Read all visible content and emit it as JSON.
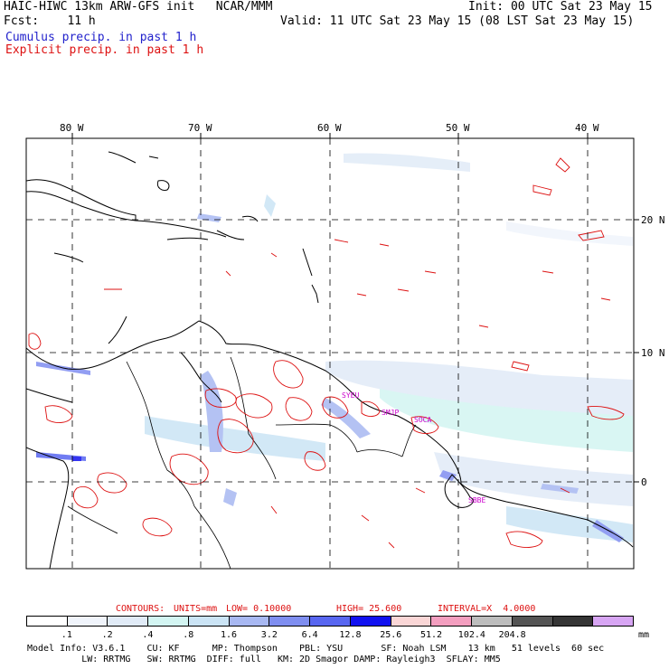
{
  "header": {
    "model_title": "HAIC-HIWC 13km ARW-GFS init   NCAR/MMM",
    "init_time": "Init: 00 UTC Sat 23 May 15",
    "forecast_label": "Fcst:    11 h",
    "valid_time": "Valid: 11 UTC Sat 23 May 15 (08 LST Sat 23 May 15)",
    "cumulus_legend": "Cumulus precip. in past 1 h",
    "explicit_legend": "Explicit precip. in past 1 h"
  },
  "colors": {
    "cumulus": "#2222cc",
    "explicit": "#dd1111",
    "contour": "#dd1111",
    "frame": "#000000",
    "station": "#cc00cc"
  },
  "map": {
    "lon_labels": [
      "80 W",
      "70 W",
      "60 W",
      "50 W",
      "40 W"
    ],
    "lat_labels": [
      "20 N",
      "10 N",
      "0"
    ],
    "stations": [
      "SYEU",
      "SMJP",
      "SOCA",
      "SBBE"
    ]
  },
  "contours": {
    "label": "CONTOURS:",
    "units": "UNITS=mm",
    "low": "LOW= 0.10000",
    "high": "HIGH= 25.600",
    "interval": "INTERVAL=X  4.0000"
  },
  "colorbar": {
    "colors": [
      "#ffffff",
      "#f0f4fb",
      "#e1ebf7",
      "#d3f5f2",
      "#cbe4f5",
      "#a8b8f2",
      "#7f8ef0",
      "#5866f0",
      "#1111f0",
      "#fad6d6",
      "#f39ebf",
      "#bdbdbd",
      "#545454",
      "#353535",
      "#d7a5f3"
    ],
    "labels": [
      ".1",
      ".2",
      ".4",
      ".8",
      "1.6",
      "3.2",
      "6.4",
      "12.8",
      "25.6",
      "51.2",
      "102.4",
      "204.8"
    ],
    "units": "mm"
  },
  "footer": {
    "line1": "Model Info: V3.6.1    CU: KF      MP: Thompson    PBL: YSU       SF: Noah LSM    13 km   51 levels  60 sec",
    "line2": "          LW: RRTMG   SW: RRTMG  DIFF: full   KM: 2D Smagor DAMP: Rayleigh3  SFLAY: MM5"
  }
}
